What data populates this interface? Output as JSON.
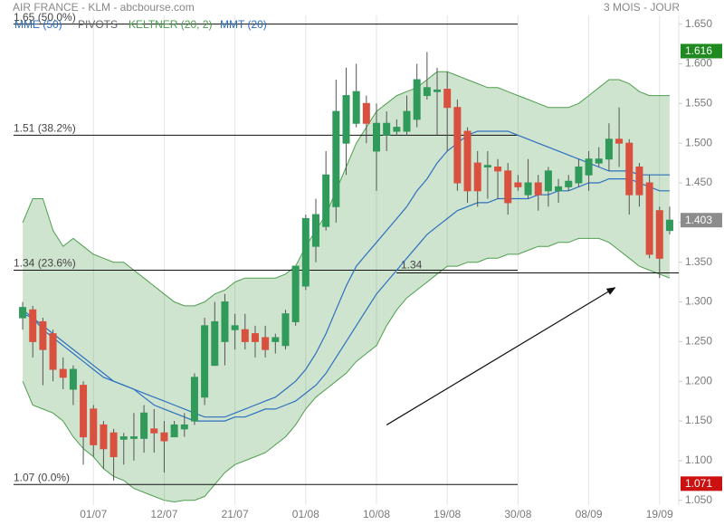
{
  "chart_data": {
    "type": "candlestick",
    "title": "AIR FRANCE - KLM - abcbourse.com",
    "subtitle": "3 MOIS - JOUR",
    "xlim": [
      -0.9,
      64.9
    ],
    "xticks": [
      {
        "value": 7,
        "label": "01/07"
      },
      {
        "value": 14,
        "label": "12/07"
      },
      {
        "value": 21,
        "label": "21/07"
      },
      {
        "value": 28,
        "label": "01/08"
      },
      {
        "value": 35,
        "label": "10/08"
      },
      {
        "value": 42,
        "label": "19/08"
      },
      {
        "value": 49,
        "label": "30/08"
      },
      {
        "value": 56,
        "label": "08/09"
      },
      {
        "value": 63,
        "label": "19/09"
      }
    ],
    "ylim": [
      1.044,
      1.661
    ],
    "yticks": [
      {
        "value": 1.05,
        "label": "1.050"
      },
      {
        "value": 1.1,
        "label": "1.100"
      },
      {
        "value": 1.15,
        "label": "1.150"
      },
      {
        "value": 1.2,
        "label": "1.200"
      },
      {
        "value": 1.25,
        "label": "1.250"
      },
      {
        "value": 1.3,
        "label": "1.300"
      },
      {
        "value": 1.35,
        "label": "1.350"
      },
      {
        "value": 1.4,
        "label": "1.400"
      },
      {
        "value": 1.45,
        "label": "1.450"
      },
      {
        "value": 1.5,
        "label": "1.500"
      },
      {
        "value": 1.55,
        "label": "1.550"
      },
      {
        "value": 1.6,
        "label": "1.600"
      },
      {
        "value": 1.65,
        "label": "1.650"
      }
    ],
    "grid": "x",
    "candles": {
      "up_color": "#2f9a5a",
      "down_color": "#d9503f",
      "open": [
        1.28,
        1.29,
        1.275,
        1.26,
        1.215,
        1.19,
        1.195,
        1.165,
        1.145,
        1.135,
        1.127,
        1.128,
        1.128,
        1.14,
        1.135,
        1.13,
        1.14,
        1.15,
        1.18,
        1.22,
        1.25,
        1.265,
        1.265,
        1.26,
        1.255,
        1.25,
        1.245,
        1.275,
        1.32,
        1.37,
        1.395,
        1.42,
        1.5,
        1.525,
        1.55,
        1.49,
        1.51,
        1.515,
        1.515,
        1.53,
        1.56,
        1.565,
        1.568,
        1.545,
        1.515,
        1.475,
        1.47,
        1.47,
        1.465,
        1.45,
        1.435,
        1.45,
        1.44,
        1.44,
        1.445,
        1.45,
        1.46,
        1.475,
        1.48,
        1.505,
        1.5,
        1.47,
        1.45,
        1.415,
        1.39
      ],
      "high": [
        1.3,
        1.295,
        1.28,
        1.265,
        1.23,
        1.22,
        1.2,
        1.17,
        1.15,
        1.14,
        1.135,
        1.16,
        1.17,
        1.165,
        1.15,
        1.15,
        1.16,
        1.21,
        1.28,
        1.3,
        1.31,
        1.285,
        1.285,
        1.27,
        1.27,
        1.26,
        1.29,
        1.345,
        1.41,
        1.43,
        1.49,
        1.58,
        1.595,
        1.6,
        1.56,
        1.55,
        1.54,
        1.53,
        1.56,
        1.6,
        1.615,
        1.595,
        1.59,
        1.555,
        1.52,
        1.49,
        1.49,
        1.48,
        1.475,
        1.46,
        1.48,
        1.46,
        1.47,
        1.455,
        1.46,
        1.48,
        1.49,
        1.495,
        1.525,
        1.545,
        1.505,
        1.475,
        1.46,
        1.42,
        1.42
      ],
      "low": [
        1.265,
        1.23,
        1.195,
        1.2,
        1.19,
        1.17,
        1.095,
        1.105,
        1.09,
        1.075,
        1.095,
        1.1,
        1.11,
        1.11,
        1.085,
        1.13,
        1.13,
        1.145,
        1.17,
        1.22,
        1.22,
        1.24,
        1.24,
        1.23,
        1.23,
        1.235,
        1.24,
        1.27,
        1.315,
        1.35,
        1.39,
        1.4,
        1.46,
        1.52,
        1.5,
        1.44,
        1.49,
        1.51,
        1.51,
        1.52,
        1.555,
        1.51,
        1.49,
        1.44,
        1.425,
        1.42,
        1.43,
        1.43,
        1.41,
        1.44,
        1.43,
        1.415,
        1.42,
        1.425,
        1.44,
        1.445,
        1.44,
        1.47,
        1.465,
        1.47,
        1.41,
        1.42,
        1.355,
        1.33,
        1.385
      ],
      "close": [
        1.293,
        1.25,
        1.24,
        1.215,
        1.205,
        1.215,
        1.13,
        1.12,
        1.115,
        1.105,
        1.13,
        1.13,
        1.16,
        1.135,
        1.125,
        1.145,
        1.145,
        1.205,
        1.27,
        1.275,
        1.3,
        1.27,
        1.25,
        1.25,
        1.24,
        1.255,
        1.285,
        1.345,
        1.405,
        1.41,
        1.46,
        1.54,
        1.56,
        1.565,
        1.525,
        1.525,
        1.525,
        1.52,
        1.54,
        1.58,
        1.57,
        1.567,
        1.545,
        1.45,
        1.44,
        1.44,
        1.472,
        1.465,
        1.425,
        1.445,
        1.45,
        1.435,
        1.465,
        1.445,
        1.452,
        1.47,
        1.48,
        1.48,
        1.505,
        1.5,
        1.435,
        1.435,
        1.36,
        1.355,
        1.403
      ]
    },
    "series": [
      {
        "name": "MME (50)",
        "color": "#2d6fc0",
        "values": [
          1.285,
          1.28,
          1.27,
          1.26,
          1.25,
          1.24,
          1.23,
          1.22,
          1.21,
          1.2,
          1.195,
          1.19,
          1.18,
          1.17,
          1.165,
          1.16,
          1.155,
          1.15,
          1.15,
          1.15,
          1.15,
          1.155,
          1.155,
          1.16,
          1.165,
          1.165,
          1.17,
          1.175,
          1.185,
          1.195,
          1.21,
          1.23,
          1.25,
          1.27,
          1.29,
          1.31,
          1.325,
          1.34,
          1.355,
          1.37,
          1.385,
          1.395,
          1.405,
          1.415,
          1.42,
          1.425,
          1.425,
          1.43,
          1.43,
          1.43,
          1.43,
          1.435,
          1.435,
          1.44,
          1.44,
          1.445,
          1.45,
          1.45,
          1.455,
          1.455,
          1.455,
          1.45,
          1.445,
          1.44,
          1.44
        ]
      },
      {
        "name": "PIVOTS",
        "color": "#666666",
        "levels": [
          {
            "value": 1.65,
            "label": "1.65 (50.0%)"
          },
          {
            "value": 1.51,
            "label": "1.51 (38.2%)"
          },
          {
            "value": 1.34,
            "label": "1.34 (23.6%)"
          },
          {
            "value": 1.07,
            "label": "1.07 (0.0%)"
          }
        ],
        "pivot": 1.34
      },
      {
        "name": "KELTNER (20, 2)",
        "color": "#4e9e4e",
        "upper": [
          1.4,
          1.43,
          1.43,
          1.39,
          1.37,
          1.38,
          1.37,
          1.36,
          1.355,
          1.35,
          1.35,
          1.34,
          1.33,
          1.32,
          1.31,
          1.3,
          1.295,
          1.295,
          1.3,
          1.31,
          1.315,
          1.325,
          1.33,
          1.33,
          1.33,
          1.33,
          1.335,
          1.345,
          1.37,
          1.39,
          1.41,
          1.44,
          1.47,
          1.5,
          1.52,
          1.54,
          1.55,
          1.56,
          1.565,
          1.57,
          1.58,
          1.59,
          1.59,
          1.585,
          1.58,
          1.575,
          1.57,
          1.57,
          1.565,
          1.56,
          1.555,
          1.55,
          1.545,
          1.545,
          1.545,
          1.55,
          1.56,
          1.57,
          1.58,
          1.58,
          1.575,
          1.565,
          1.56,
          1.56,
          1.56
        ],
        "lower": [
          1.2,
          1.17,
          1.165,
          1.16,
          1.15,
          1.13,
          1.115,
          1.105,
          1.09,
          1.08,
          1.075,
          1.065,
          1.06,
          1.055,
          1.05,
          1.048,
          1.05,
          1.05,
          1.055,
          1.07,
          1.085,
          1.095,
          1.1,
          1.105,
          1.11,
          1.12,
          1.13,
          1.145,
          1.165,
          1.18,
          1.19,
          1.2,
          1.21,
          1.225,
          1.235,
          1.245,
          1.27,
          1.29,
          1.305,
          1.315,
          1.325,
          1.335,
          1.345,
          1.345,
          1.35,
          1.35,
          1.355,
          1.355,
          1.36,
          1.36,
          1.365,
          1.37,
          1.37,
          1.375,
          1.375,
          1.38,
          1.38,
          1.38,
          1.375,
          1.365,
          1.355,
          1.345,
          1.34,
          1.335,
          1.33
        ]
      },
      {
        "name": "MMT (20)",
        "color": "#2d6fc0",
        "values": [
          1.29,
          1.28,
          1.265,
          1.255,
          1.245,
          1.235,
          1.225,
          1.215,
          1.205,
          1.2,
          1.195,
          1.19,
          1.185,
          1.18,
          1.175,
          1.17,
          1.165,
          1.16,
          1.155,
          1.155,
          1.155,
          1.16,
          1.165,
          1.17,
          1.175,
          1.18,
          1.19,
          1.2,
          1.215,
          1.235,
          1.26,
          1.29,
          1.32,
          1.345,
          1.36,
          1.375,
          1.39,
          1.405,
          1.42,
          1.44,
          1.455,
          1.475,
          1.49,
          1.5,
          1.51,
          1.515,
          1.515,
          1.515,
          1.515,
          1.51,
          1.505,
          1.5,
          1.495,
          1.49,
          1.485,
          1.48,
          1.475,
          1.47,
          1.465,
          1.465,
          1.465,
          1.46,
          1.46,
          1.46,
          1.46
        ]
      }
    ],
    "trendline": {
      "x": [
        36,
        58.6
      ],
      "y": [
        1.145,
        1.318
      ],
      "color": "#111111"
    },
    "price_labels": [
      {
        "value": 1.616,
        "color": "#1f8a1f"
      },
      {
        "value": 1.403,
        "color": "#8c8c8c"
      },
      {
        "value": 1.071,
        "color": "#cc1111"
      }
    ]
  }
}
